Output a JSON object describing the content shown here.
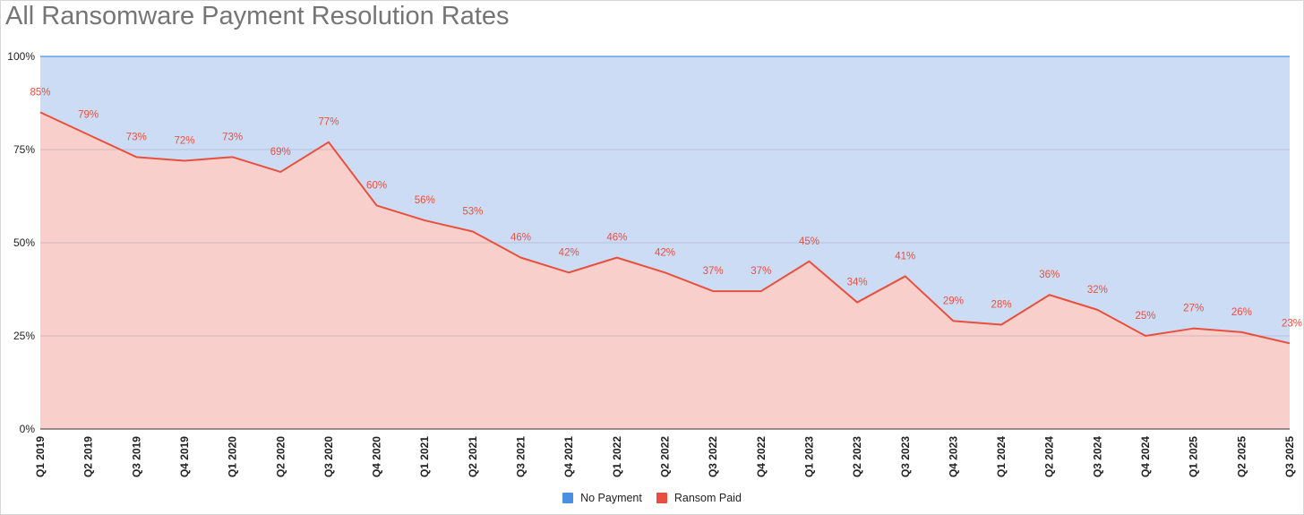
{
  "chart_data": {
    "type": "area",
    "stacked": "percent",
    "title": "All Ransomware Payment Resolution Rates",
    "categories": [
      "Q1 2019",
      "Q2 2019",
      "Q3 2019",
      "Q4 2019",
      "Q1 2020",
      "Q2 2020",
      "Q3 2020",
      "Q4 2020",
      "Q1 2021",
      "Q2 2021",
      "Q3 2021",
      "Q4 2021",
      "Q1 2022",
      "Q2 2022",
      "Q3 2022",
      "Q4 2022",
      "Q1 2023",
      "Q2 2023",
      "Q3 2023",
      "Q4 2023",
      "Q1 2024",
      "Q2 2024",
      "Q3 2024",
      "Q4 2024",
      "Q1 2025",
      "Q2 2025",
      "Q3 2025"
    ],
    "series": [
      {
        "name": "Ransom Paid",
        "color": "#e8503e",
        "fill": "#f8cfcb",
        "values": [
          85,
          79,
          73,
          72,
          73,
          69,
          77,
          60,
          56,
          53,
          46,
          42,
          46,
          42,
          37,
          37,
          45,
          34,
          41,
          29,
          28,
          36,
          32,
          25,
          27,
          26,
          23
        ],
        "labels": [
          "85%",
          "79%",
          "73%",
          "72%",
          "73%",
          "69%",
          "77%",
          "60%",
          "56%",
          "53%",
          "46%",
          "42%",
          "46%",
          "42%",
          "37%",
          "37%",
          "45%",
          "34%",
          "41%",
          "29%",
          "28%",
          "36%",
          "32%",
          "25%",
          "27%",
          "26%",
          "23%"
        ]
      },
      {
        "name": "No Payment",
        "color": "#4a90e2",
        "fill": "#cddcf5",
        "values": [
          15,
          21,
          27,
          28,
          27,
          31,
          23,
          40,
          44,
          47,
          54,
          58,
          54,
          58,
          63,
          63,
          55,
          66,
          59,
          71,
          72,
          64,
          68,
          75,
          73,
          74,
          77
        ]
      }
    ],
    "y_ticks": [
      "0%",
      "25%",
      "50%",
      "75%",
      "100%"
    ],
    "ylim": [
      0,
      100
    ],
    "legend": [
      "No Payment",
      "Ransom Paid"
    ],
    "legend_position": "bottom"
  }
}
